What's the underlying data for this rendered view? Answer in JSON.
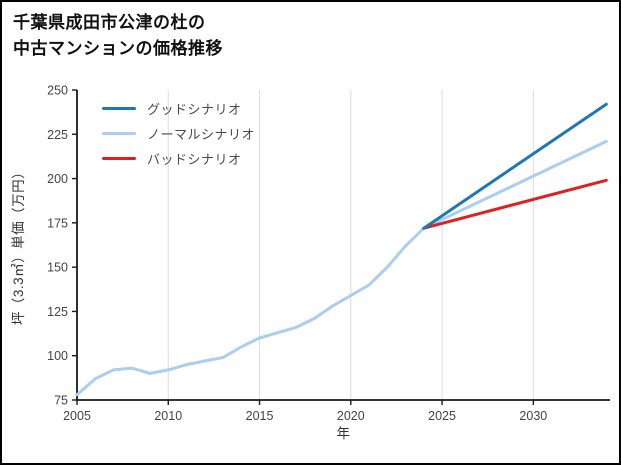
{
  "title": {
    "line1": "千葉県成田市公津の杜の",
    "line2": "中古マンションの価格推移"
  },
  "chart_data": {
    "type": "line",
    "title": "千葉県成田市公津の杜の中古マンションの価格推移",
    "xlabel": "年",
    "ylabel": "坪（3.3㎡）単価（万円）",
    "xlim": [
      2005,
      2034.2
    ],
    "ylim": [
      75,
      250
    ],
    "xticks": [
      2005,
      2010,
      2015,
      2020,
      2025,
      2030
    ],
    "yticks": [
      75,
      100,
      125,
      150,
      175,
      200,
      225,
      250
    ],
    "grid": "vertical",
    "legend_position": "upper-left",
    "colors": {
      "good": "#1f77b4",
      "normal": "#abcdf0",
      "bad": "#e02020",
      "grid": "#dcdcdc",
      "axis": "#1a1a1a"
    },
    "series": [
      {
        "key": "good",
        "name": "グッドシナリオ",
        "color": "#1f77b4",
        "x": [
          2024,
          2034
        ],
        "values": [
          172,
          242
        ]
      },
      {
        "key": "normal",
        "name": "ノーマルシナリオ",
        "color": "#abcdf0",
        "x": [
          2005,
          2006,
          2007,
          2008,
          2009,
          2010,
          2011,
          2012,
          2013,
          2014,
          2015,
          2016,
          2017,
          2018,
          2019,
          2020,
          2021,
          2022,
          2023,
          2024,
          2034
        ],
        "values": [
          78,
          87,
          92,
          93,
          90,
          92,
          95,
          97,
          99,
          105,
          110,
          113,
          116,
          121,
          128,
          134,
          140,
          150,
          162,
          172,
          221
        ]
      },
      {
        "key": "bad",
        "name": "バッドシナリオ",
        "color": "#e02020",
        "x": [
          2024,
          2034
        ],
        "values": [
          172,
          199
        ]
      }
    ]
  }
}
